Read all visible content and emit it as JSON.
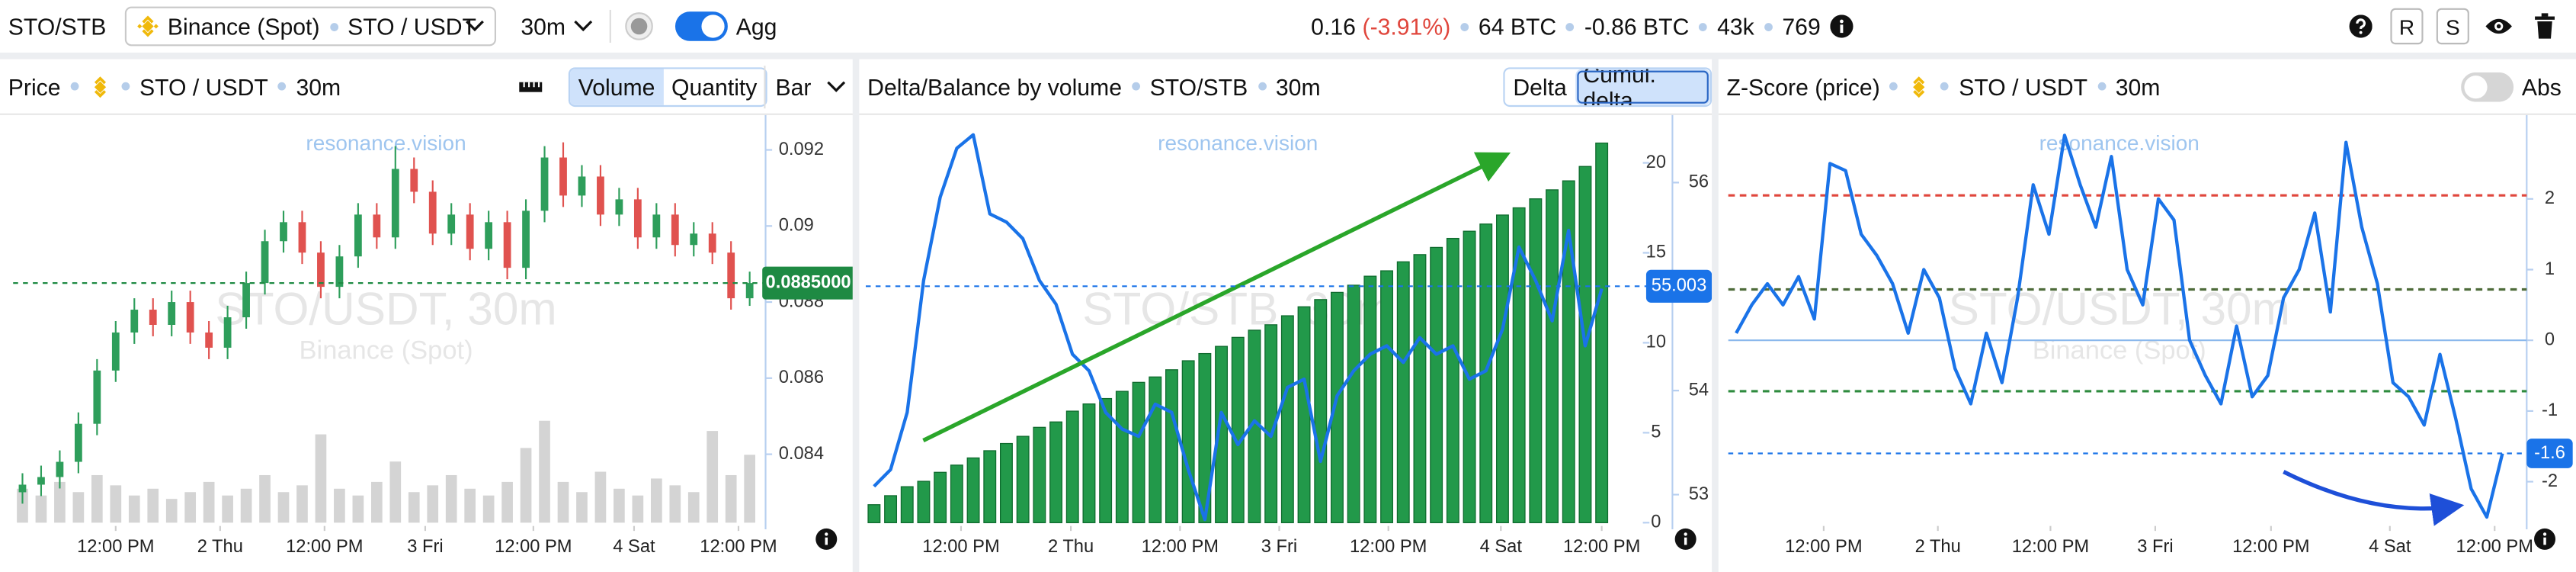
{
  "toolbar": {
    "symbol": "STO/STB",
    "exchange": "Binance (Spot)",
    "pair": "STO / USDT",
    "interval": "30m",
    "agg": "Agg",
    "price": "0.16",
    "change": "(-3.91%)",
    "volume": "64 BTC",
    "delta": "-0.86 BTC",
    "trades": "43k",
    "count": "769",
    "buttons": [
      "R",
      "S"
    ]
  },
  "chart_data": [
    {
      "type": "candlestick",
      "title": "Price",
      "pair": "STO / USDT",
      "interval": "30m",
      "buttons": [
        "Volume",
        "Quantity"
      ],
      "active_button": 0,
      "chart_style": "Bar",
      "watermark": [
        "resonance.vision",
        "STO/USDT, 30m",
        "Binance (Spot)"
      ],
      "open": [
        0.083,
        0.0832,
        0.0834,
        0.0838,
        0.0848,
        0.0862,
        0.0872,
        0.0878,
        0.0874,
        0.088,
        0.0872,
        0.0868,
        0.0876,
        0.0885,
        0.0896,
        0.0901,
        0.0893,
        0.0884,
        0.0892,
        0.0903,
        0.0897,
        0.0915,
        0.0909,
        0.0898,
        0.0903,
        0.0894,
        0.0901,
        0.0889,
        0.0904,
        0.0918,
        0.0908,
        0.0913,
        0.0903,
        0.0907,
        0.0897,
        0.0903,
        0.0895,
        0.0898,
        0.0893,
        0.0881
      ],
      "high": [
        0.0835,
        0.0837,
        0.0841,
        0.0851,
        0.0865,
        0.0875,
        0.0881,
        0.0881,
        0.0883,
        0.0883,
        0.0875,
        0.0879,
        0.0888,
        0.0899,
        0.0904,
        0.0904,
        0.0896,
        0.0895,
        0.0906,
        0.0906,
        0.0921,
        0.0918,
        0.0912,
        0.0906,
        0.0906,
        0.0904,
        0.0904,
        0.0907,
        0.0921,
        0.0922,
        0.0916,
        0.0916,
        0.091,
        0.091,
        0.0906,
        0.0906,
        0.0901,
        0.0901,
        0.0896,
        0.0888
      ],
      "low": [
        0.0827,
        0.0829,
        0.0831,
        0.0835,
        0.0845,
        0.0859,
        0.0869,
        0.0871,
        0.0871,
        0.0869,
        0.0865,
        0.0865,
        0.0873,
        0.0882,
        0.0893,
        0.089,
        0.0881,
        0.0881,
        0.0889,
        0.0894,
        0.0894,
        0.0906,
        0.0895,
        0.0895,
        0.0891,
        0.0891,
        0.0886,
        0.0886,
        0.0901,
        0.0905,
        0.0905,
        0.09,
        0.09,
        0.0894,
        0.0894,
        0.0892,
        0.0892,
        0.089,
        0.0878,
        0.0879
      ],
      "close": [
        0.0832,
        0.0834,
        0.0838,
        0.0848,
        0.0862,
        0.0872,
        0.0878,
        0.0874,
        0.088,
        0.0872,
        0.0868,
        0.0876,
        0.0885,
        0.0896,
        0.0901,
        0.0893,
        0.0884,
        0.0892,
        0.0903,
        0.0897,
        0.0915,
        0.0909,
        0.0898,
        0.0903,
        0.0894,
        0.0901,
        0.0889,
        0.0904,
        0.0918,
        0.0908,
        0.0913,
        0.0903,
        0.0907,
        0.0897,
        0.0903,
        0.0895,
        0.0898,
        0.0893,
        0.0881,
        0.0885
      ],
      "volume": [
        10,
        8,
        12,
        9,
        14,
        11,
        8,
        10,
        7,
        9,
        12,
        8,
        10,
        14,
        9,
        11,
        26,
        10,
        8,
        12,
        18,
        9,
        11,
        14,
        10,
        8,
        12,
        22,
        30,
        12,
        9,
        15,
        10,
        8,
        13,
        11,
        9,
        27,
        14,
        20
      ],
      "up_color": "#2e9e5b",
      "down_color": "#e0524f",
      "volume_color": "#d4d4d4",
      "ylim": [
        0.0822,
        0.0927
      ],
      "yticks": [
        0.084,
        0.086,
        0.088,
        0.09,
        0.092
      ],
      "last_price": {
        "value": 0.0885,
        "label": "0.0885000"
      },
      "last_color": "#1e8a43",
      "xlim": [
        -0.5,
        39.5
      ],
      "xticks": [
        {
          "value": 5,
          "label": "12:00 PM"
        },
        {
          "value": 10.6,
          "label": "2 Thu"
        },
        {
          "value": 16.2,
          "label": "12:00 PM"
        },
        {
          "value": 21.6,
          "label": "3 Fri"
        },
        {
          "value": 27.4,
          "label": "12:00 PM"
        },
        {
          "value": 32.8,
          "label": "4 Sat"
        },
        {
          "value": 38.4,
          "label": "12:00 PM"
        }
      ]
    },
    {
      "type": "bar",
      "title": "Delta/Balance by volume",
      "pair": "STO/STB",
      "interval": "30m",
      "buttons": [
        "Delta",
        "Cumul. delta"
      ],
      "active_button": 1,
      "watermark": [
        "resonance.vision",
        "STO/STB, 30m"
      ],
      "series": [
        {
          "color": "#22994a",
          "values": [
            1,
            1.5,
            2,
            2.3,
            2.8,
            3.2,
            3.6,
            4,
            4.4,
            4.8,
            5.3,
            5.6,
            6.2,
            6.6,
            6.9,
            7.3,
            7.8,
            8.1,
            8.5,
            9,
            9.4,
            9.8,
            10.3,
            10.7,
            11,
            11.5,
            12,
            12.4,
            12.8,
            13.2,
            13.7,
            14,
            14.5,
            14.9,
            15.3,
            15.8,
            16.2,
            16.6,
            17.1,
            17.5,
            18,
            18.5,
            19,
            19.8,
            21.1
          ]
        },
        {
          "color": "#1a73e8",
          "axis": "y2",
          "type": "line",
          "values": [
            53.08,
            53.24,
            53.79,
            55.06,
            55.86,
            56.33,
            56.46,
            55.7,
            55.62,
            55.46,
            55.06,
            54.83,
            54.35,
            54.19,
            53.79,
            53.63,
            53.56,
            53.87,
            53.79,
            53.24,
            52.76,
            53.79,
            53.48,
            53.71,
            53.56,
            54.03,
            54.11,
            53.32,
            53.95,
            54.19,
            54.35,
            54.43,
            54.27,
            54.51,
            54.35,
            54.43,
            54.11,
            54.19,
            54.59,
            55.38,
            55.06,
            54.67,
            55.54,
            54.43,
            54.98
          ]
        }
      ],
      "ylim": [
        0,
        22.2
      ],
      "yticks": [
        0,
        5,
        10,
        15,
        20
      ],
      "y2lim": [
        52.73,
        56.57
      ],
      "y2ticks": [
        53,
        54,
        55,
        56
      ],
      "last_value": 55.003,
      "xlim": [
        -0.5,
        44.5
      ],
      "xticks": [
        {
          "value": 5.26,
          "label": "12:00 PM"
        },
        {
          "value": 11.9,
          "label": "2 Thu"
        },
        {
          "value": 18.5,
          "label": "12:00 PM"
        },
        {
          "value": 24.5,
          "label": "3 Fri"
        },
        {
          "value": 31.1,
          "label": "12:00 PM"
        },
        {
          "value": 37.9,
          "label": "4 Sat"
        },
        {
          "value": 44,
          "label": "12:00 PM"
        }
      ]
    },
    {
      "type": "line",
      "title": "Z-Score (price)",
      "pair": "STO / USDT",
      "interval": "30m",
      "toggle": "Abs",
      "watermark": [
        "resonance.vision",
        "STO/USDT, 30m",
        "Binance (Spot)"
      ],
      "color": "#1a73e8",
      "values": [
        0.1,
        0.5,
        0.8,
        0.5,
        0.9,
        0.3,
        2.5,
        2.4,
        1.5,
        1.2,
        0.8,
        0.1,
        1.0,
        0.6,
        -0.4,
        -0.9,
        0.1,
        -0.6,
        0.6,
        2.2,
        1.5,
        2.9,
        2.2,
        1.6,
        2.6,
        1.0,
        0.5,
        2.0,
        1.7,
        0.0,
        -0.5,
        -0.9,
        0.2,
        -0.8,
        -0.5,
        0.6,
        1.0,
        1.8,
        0.4,
        2.8,
        1.6,
        0.8,
        -0.6,
        -0.8,
        -1.2,
        -0.2,
        -1.1,
        -2.1,
        -2.5,
        -1.6
      ],
      "ylim": [
        -2.58,
        3.07
      ],
      "yticks": [
        -2,
        -1,
        0,
        1,
        2
      ],
      "levels": [
        {
          "value": 2.05,
          "color": "#e0463c"
        },
        {
          "value": 0.72,
          "color": "#4e6b3a"
        },
        {
          "value": -0.72,
          "color": "#2e8b3e"
        }
      ],
      "zero_color": "#8ab8ec",
      "last_value": -1.6,
      "xlim": [
        -0.5,
        49.5
      ],
      "xticks": [
        {
          "value": 5.6,
          "label": "12:00 PM"
        },
        {
          "value": 12.9,
          "label": "2 Thu"
        },
        {
          "value": 20.1,
          "label": "12:00 PM"
        },
        {
          "value": 26.8,
          "label": "3 Fri"
        },
        {
          "value": 34.2,
          "label": "12:00 PM"
        },
        {
          "value": 41.8,
          "label": "4 Sat"
        },
        {
          "value": 48.5,
          "label": "12:00 PM"
        }
      ]
    }
  ]
}
